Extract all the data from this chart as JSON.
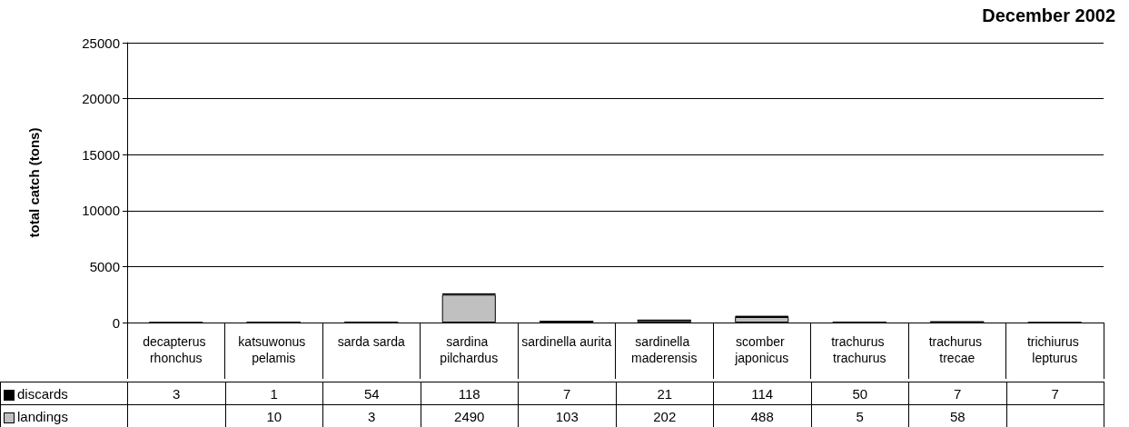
{
  "chart_data": {
    "type": "bar",
    "title": "December 2002",
    "ylabel": "total catch (tons)",
    "categories": [
      "decapterus rhonchus",
      "katsuwonus pelamis",
      "sarda sarda",
      "sardina pilchardus",
      "sardinella aurita",
      "sardinella maderensis",
      "scomber japonicus",
      "trachurus trachurus",
      "trachurus trecae",
      "trichiurus lepturus"
    ],
    "series": [
      {
        "name": "landings",
        "color": "#c0c0c0",
        "values": [
          null,
          10,
          3,
          2490,
          103,
          202,
          488,
          5,
          58,
          null
        ]
      },
      {
        "name": "discards",
        "color": "#000000",
        "values": [
          3,
          1,
          54,
          118,
          7,
          21,
          114,
          50,
          7,
          7
        ]
      }
    ],
    "stacked": true,
    "ylim": [
      0,
      25000
    ],
    "yticks": [
      0,
      5000,
      10000,
      15000,
      20000,
      25000
    ],
    "grid": "y",
    "legend": "bottom left",
    "data_labels": true
  }
}
